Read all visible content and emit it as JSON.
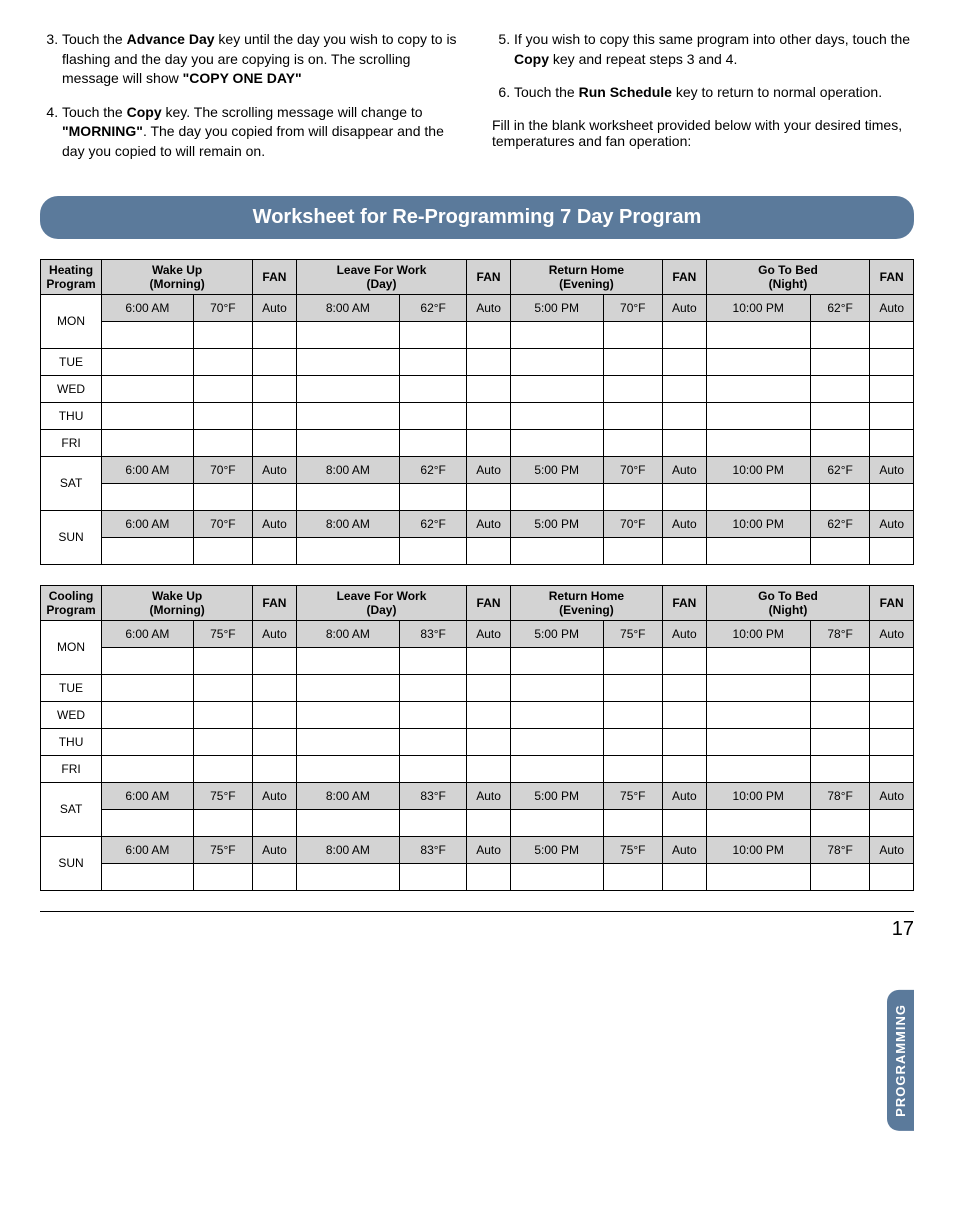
{
  "instructions_left": [
    {
      "num": "3.",
      "html": "Touch the <b>Advance Day</b> key until the day you wish to copy to is flashing and the day you are copying is on. The scrolling message will show <b>\"COPY ONE DAY\"</b>"
    },
    {
      "num": "4.",
      "html": "Touch the <b>Copy</b> key. The scrolling message will change to <b>\"MORNING\"</b>. The day you copied from will disappear and the day you copied to will remain on."
    }
  ],
  "instructions_right": [
    {
      "num": "5.",
      "html": "If you wish to copy this same program into other days, touch the <b>Copy</b> key and repeat steps 3 and 4."
    },
    {
      "num": "6.",
      "html": "Touch the <b>Run Schedule</b> key to return to normal operation."
    }
  ],
  "fill_note": "Fill in the blank worksheet provided below with your desired times, temperatures and fan operation:",
  "banner_title": "Worksheet for Re-Programming 7 Day Program",
  "headers": {
    "wake_up": "Wake Up",
    "morning": "(Morning)",
    "leave": "Leave For Work",
    "day": "(Day)",
    "return": "Return Home",
    "evening": "(Evening)",
    "bed": "Go To Bed",
    "night": "(Night)",
    "fan": "FAN"
  },
  "heating": {
    "title": "Heating Program",
    "temp_wake": "70°F",
    "temp_leave": "62°F",
    "temp_return": "70°F",
    "temp_bed": "62°F",
    "rows": [
      {
        "day": "MON",
        "filled": true
      },
      {
        "day": "TUE",
        "filled": false
      },
      {
        "day": "WED",
        "filled": false
      },
      {
        "day": "THU",
        "filled": false
      },
      {
        "day": "FRI",
        "filled": false
      },
      {
        "day": "SAT",
        "filled": true
      },
      {
        "day": "SUN",
        "filled": true
      }
    ]
  },
  "cooling": {
    "title": "Cooling Program",
    "temp_wake": "75°F",
    "temp_leave": "83°F",
    "temp_return": "75°F",
    "temp_bed": "78°F",
    "rows": [
      {
        "day": "MON",
        "filled": true
      },
      {
        "day": "TUE",
        "filled": false
      },
      {
        "day": "WED",
        "filled": false
      },
      {
        "day": "THU",
        "filled": false
      },
      {
        "day": "FRI",
        "filled": false
      },
      {
        "day": "SAT",
        "filled": true
      },
      {
        "day": "SUN",
        "filled": true
      }
    ]
  },
  "times": {
    "wake": "6:00 AM",
    "leave": "8:00 AM",
    "return": "5:00 PM",
    "bed": "10:00 PM"
  },
  "fan_mode": "Auto",
  "side_tab": "PROGRAMMING",
  "page_number": "17"
}
